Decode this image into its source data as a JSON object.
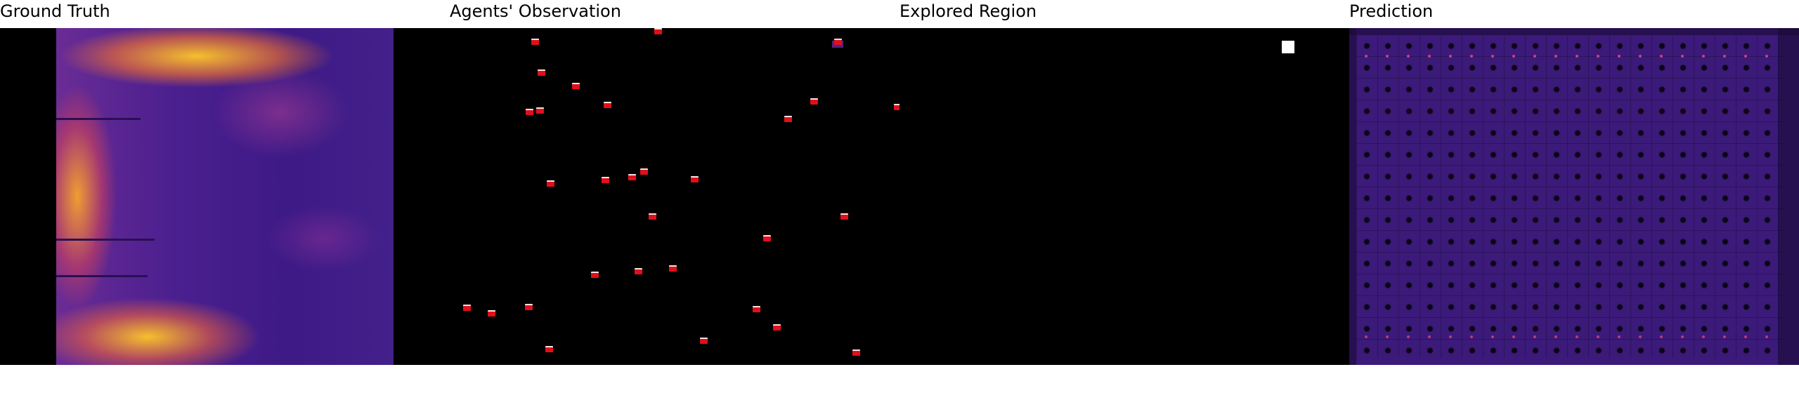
{
  "titles": {
    "ground_truth": "Ground Truth",
    "observation": "Agents' Observation",
    "explored": "Explored Region",
    "prediction": "Prediction"
  },
  "colors": {
    "background": "#000000",
    "marker": "#e0101a",
    "heat_low": "#3d1a86",
    "heat_high": "#ffc828",
    "explored": "#ffffff"
  }
}
